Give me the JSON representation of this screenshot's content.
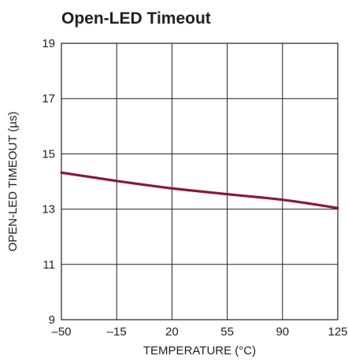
{
  "chart_data": {
    "type": "line",
    "title": "Open-LED Timeout",
    "xlabel": "TEMPERATURE (°C)",
    "ylabel": "OPEN-LED TIMEOUT (µs)",
    "xlim": [
      -50,
      125
    ],
    "ylim": [
      9,
      19
    ],
    "x_ticks": [
      -50,
      -15,
      20,
      55,
      90,
      125
    ],
    "x_tick_labels": [
      "–50",
      "–15",
      "20",
      "55",
      "90",
      "125"
    ],
    "y_ticks": [
      9,
      11,
      13,
      15,
      17,
      19
    ],
    "y_tick_labels": [
      "9",
      "11",
      "13",
      "15",
      "17",
      "19"
    ],
    "grid": true,
    "series": [
      {
        "color": "#8b1a34",
        "x": [
          -50,
          -30,
          -15,
          0,
          20,
          40,
          55,
          75,
          90,
          105,
          125
        ],
        "y": [
          14.32,
          14.15,
          14.02,
          13.9,
          13.75,
          13.63,
          13.54,
          13.43,
          13.34,
          13.22,
          13.04
        ]
      }
    ]
  }
}
